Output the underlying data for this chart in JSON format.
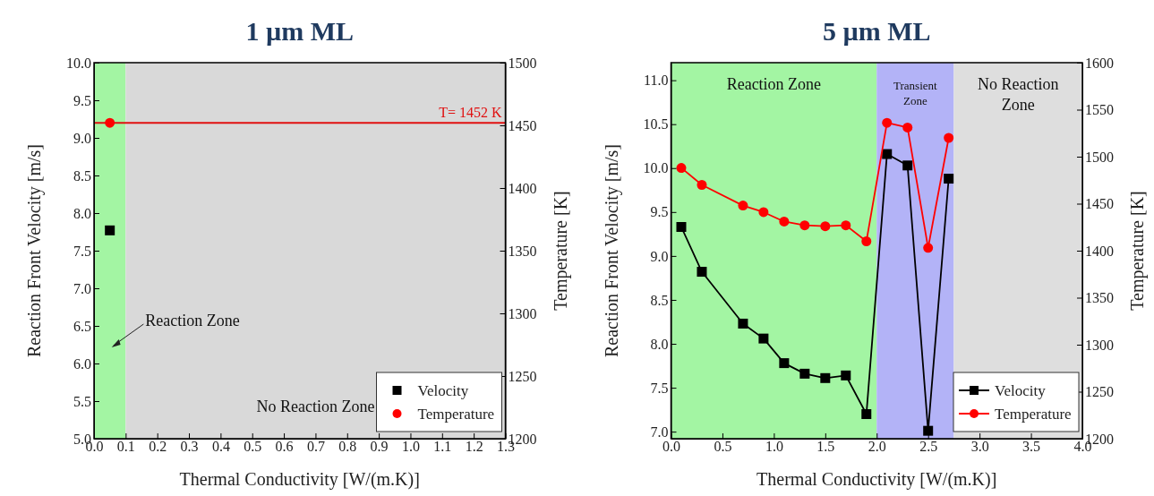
{
  "chart_data": [
    {
      "type": "scatter",
      "title": "1 µm ML",
      "xlabel": "Thermal Conductivity [W/(m.K)]",
      "ylabel": "Reaction Front Velocity [m/s]",
      "y2label": "Temperature [K]",
      "xlim": [
        0,
        1.3
      ],
      "xticks": [
        {
          "value": 0,
          "label": "0.0"
        },
        0.1,
        0.2,
        0.3,
        0.4,
        0.5,
        0.6,
        0.7,
        0.8,
        0.9,
        {
          "value": 1,
          "label": "1.0"
        },
        1.1,
        1.2,
        1.3
      ],
      "ylim": [
        5,
        10
      ],
      "yticks": [
        {
          "value": 5,
          "label": "5.0"
        },
        5.5,
        {
          "value": 6,
          "label": "6.0"
        },
        6.5,
        {
          "value": 7,
          "label": "7.0"
        },
        7.5,
        {
          "value": 8,
          "label": "8.0"
        },
        8.5,
        {
          "value": 9,
          "label": "9.0"
        },
        9.5,
        {
          "value": 10,
          "label": "10.0"
        }
      ],
      "y2lim": [
        1200,
        1500
      ],
      "y2ticks": [
        1200,
        1250,
        1300,
        1350,
        1400,
        1450,
        1500
      ],
      "series": [
        {
          "name": "Velocity",
          "color": "#000000",
          "marker": "square",
          "x": [
            0.05
          ],
          "values": [
            7.77
          ]
        },
        {
          "name": "Temperature",
          "color": "#ff0000",
          "marker": "circle",
          "axis": "y2",
          "x": [
            0.05
          ],
          "values": [
            1452
          ]
        }
      ],
      "ref_lines": [
        {
          "axis": "y2",
          "value": 1452,
          "label": "T= 1452 K",
          "color": "#e01010"
        }
      ],
      "bands": [
        {
          "axis": "x",
          "from": 0,
          "to": 0.1,
          "label": "Reaction Zone",
          "color": "#a3f5a3"
        },
        {
          "axis": "x",
          "from": 0.1,
          "to": 1.3,
          "label": "No Reaction Zone",
          "color": "#d9d9d9"
        }
      ],
      "legend": "bottom right"
    },
    {
      "type": "line",
      "title": "5 µm ML",
      "xlabel": "Thermal Conductivity [W/(m.K)]",
      "ylabel": "Reaction Front Velocity [m/s]",
      "y2label": "Temperature [K]",
      "xlim": [
        0,
        4
      ],
      "xticks": [
        {
          "value": 0,
          "label": "0.0"
        },
        0.5,
        {
          "value": 1,
          "label": "1.0"
        },
        1.5,
        {
          "value": 2,
          "label": "2.0"
        },
        2.5,
        {
          "value": 3,
          "label": "3.0"
        },
        3.5,
        {
          "value": 4,
          "label": "4.0"
        }
      ],
      "ylim": [
        6.92,
        11.2
      ],
      "yticks": [
        {
          "value": 7,
          "label": "7.0"
        },
        7.5,
        {
          "value": 8,
          "label": "8.0"
        },
        8.5,
        {
          "value": 9,
          "label": "9.0"
        },
        9.5,
        {
          "value": 10,
          "label": "10.0"
        },
        10.5,
        {
          "value": 11,
          "label": "11.0"
        }
      ],
      "y2lim": [
        1200,
        1600
      ],
      "y2ticks": [
        1200,
        1250,
        1300,
        1350,
        1400,
        1450,
        1500,
        1550,
        1600
      ],
      "x": [
        0.1,
        0.3,
        0.7,
        0.9,
        1.1,
        1.3,
        1.5,
        1.7,
        1.9,
        2.1,
        2.3,
        2.5,
        2.7
      ],
      "series": [
        {
          "name": "Velocity",
          "color": "#000000",
          "marker": "square",
          "values": [
            9.33,
            8.82,
            8.23,
            8.06,
            7.78,
            7.66,
            7.61,
            7.64,
            7.2,
            10.16,
            10.03,
            7.01,
            9.88
          ]
        },
        {
          "name": "Temperature",
          "color": "#ff0000",
          "marker": "circle",
          "axis": "y2",
          "values": [
            1488,
            1470,
            1448,
            1441,
            1431,
            1427,
            1426,
            1427,
            1410,
            1536,
            1531,
            1403,
            1520
          ]
        }
      ],
      "bands": [
        {
          "axis": "x",
          "from": 0,
          "to": 2,
          "label": "Reaction Zone",
          "color": "#a3f5a3"
        },
        {
          "axis": "x",
          "from": 2,
          "to": 2.75,
          "label": "Transient Zone",
          "color": "#b3b3f7"
        },
        {
          "axis": "x",
          "from": 2.75,
          "to": 4,
          "label": "No Reaction Zone",
          "color": "#dedede"
        }
      ],
      "legend": "bottom right"
    }
  ]
}
